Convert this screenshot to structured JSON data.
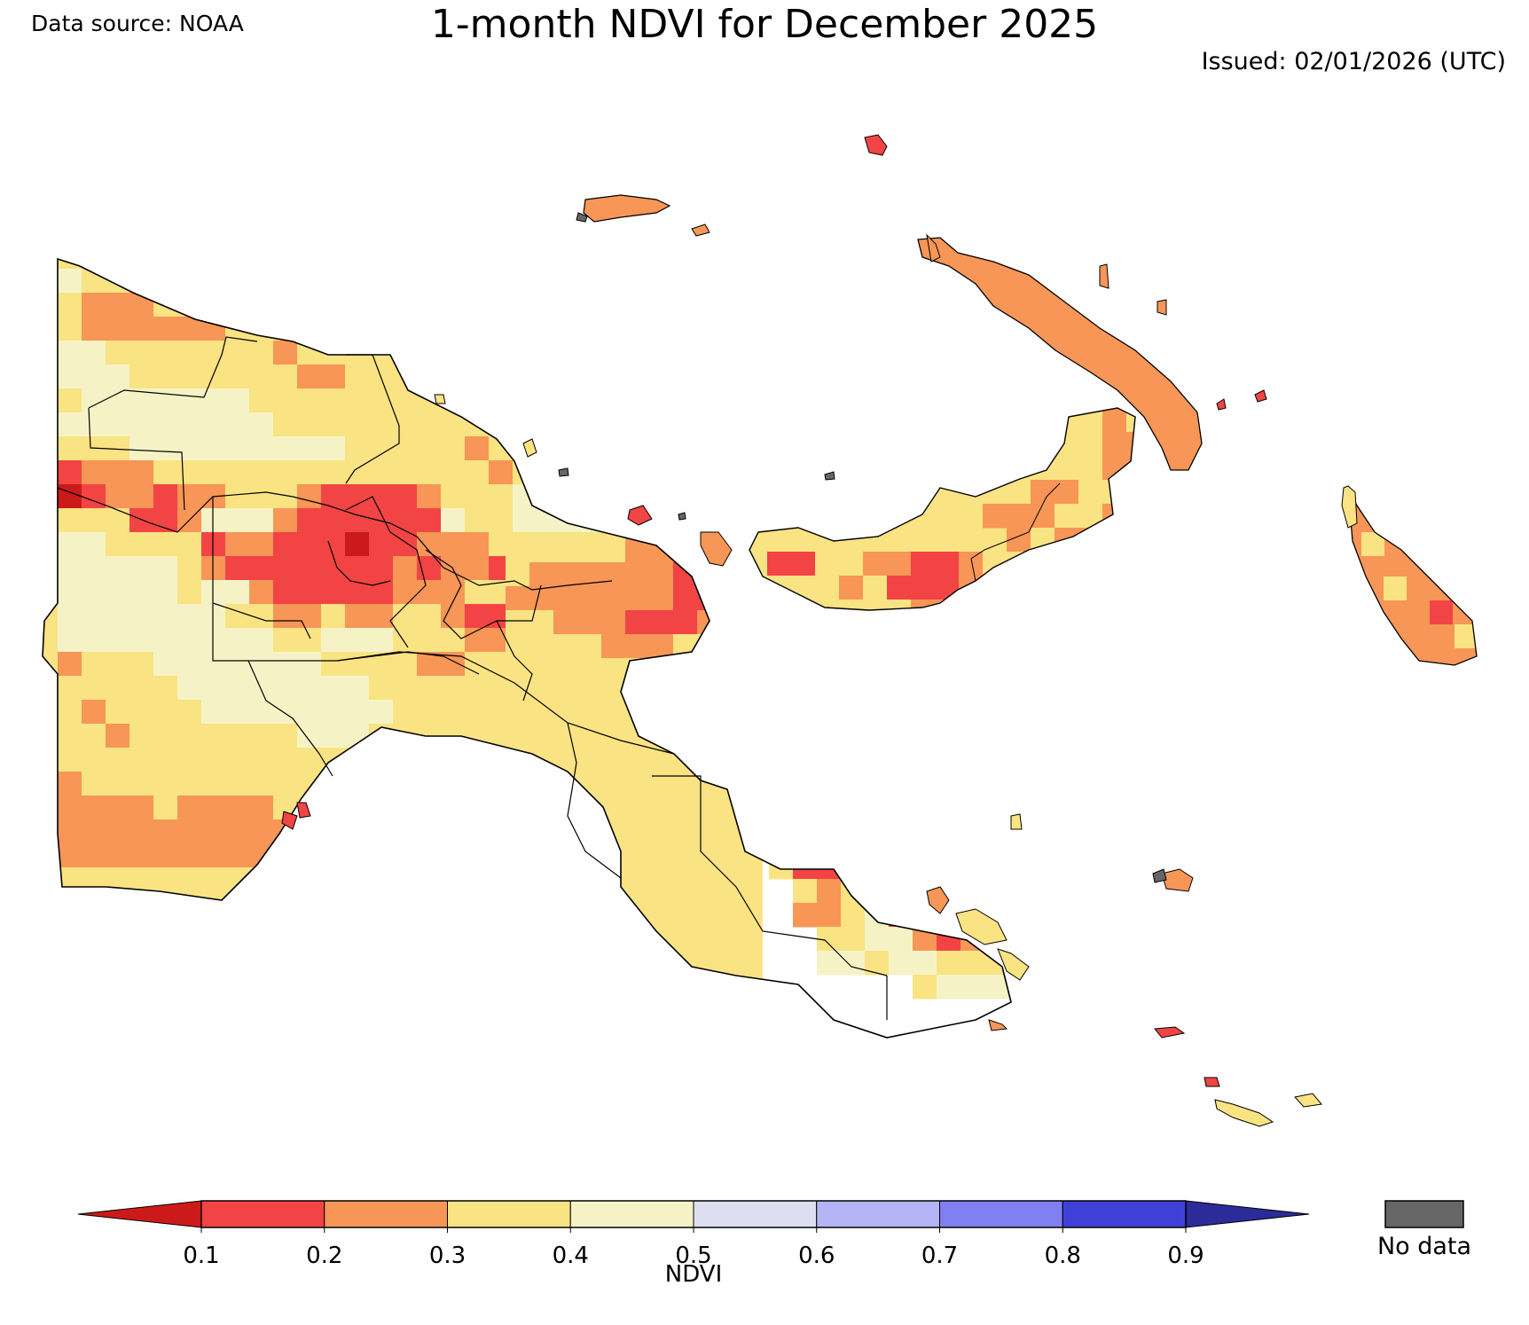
{
  "header": {
    "data_source": "Data source: NOAA",
    "title": "1-month NDVI for December 2025",
    "issued": "Issued: 02/01/2026 (UTC)"
  },
  "colorbar": {
    "label": "NDVI",
    "tick_labels": [
      "0.1",
      "0.2",
      "0.3",
      "0.4",
      "0.5",
      "0.6",
      "0.7",
      "0.8",
      "0.9"
    ],
    "under_color": "#cc1a1a",
    "over_color": "#2b2b99",
    "bins": [
      {
        "range": "0.1-0.2",
        "color": "#f24444"
      },
      {
        "range": "0.2-0.3",
        "color": "#f79656"
      },
      {
        "range": "0.3-0.4",
        "color": "#fae382"
      },
      {
        "range": "0.4-0.5",
        "color": "#f5f3c6"
      },
      {
        "range": "0.5-0.6",
        "color": "#dddff0"
      },
      {
        "range": "0.6-0.7",
        "color": "#b4b4f7"
      },
      {
        "range": "0.7-0.8",
        "color": "#8080f2"
      },
      {
        "range": "0.8-0.9",
        "color": "#4040d9"
      }
    ]
  },
  "no_data": {
    "label": "No data",
    "color": "#666666"
  },
  "map": {
    "region": "Papua New Guinea",
    "palette": {
      "d": "#cc1a1a",
      "r": "#f24444",
      "o": "#f79656",
      "y": "#fae382",
      "c": "#f5f3c6",
      "l": "#dddff0",
      "g": "#666666"
    }
  }
}
